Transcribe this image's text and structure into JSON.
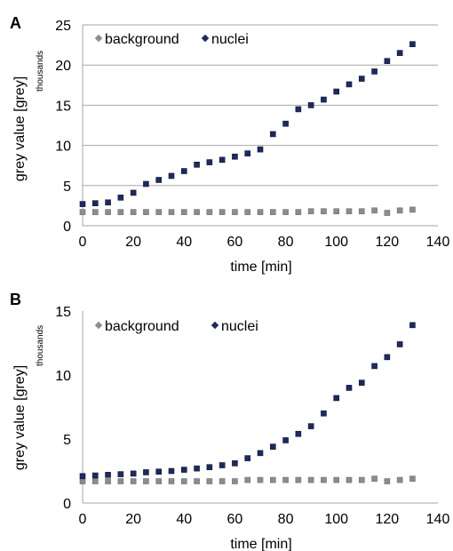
{
  "charts": [
    {
      "panel_label": "A",
      "units_label": "thousands",
      "legend": {
        "background": "background",
        "nuclei": "nuclei"
      },
      "grid": true,
      "legend_position": "top-left",
      "colors": {
        "background": "#8c8c8c",
        "nuclei": "#1f2a5c"
      }
    },
    {
      "panel_label": "B",
      "units_label": "thousands",
      "legend": {
        "background": "background",
        "nuclei": "nuclei"
      },
      "grid": false,
      "legend_position": "top-left",
      "colors": {
        "background": "#8c8c8c",
        "nuclei": "#1f2a5c"
      }
    }
  ],
  "chart_data": [
    {
      "type": "scatter",
      "xlabel": "time [min]",
      "ylabel": "grey value [grey]",
      "xlim": [
        0,
        140
      ],
      "ylim": [
        0,
        25
      ],
      "xticks": [
        0,
        20,
        40,
        60,
        80,
        100,
        120,
        140
      ],
      "yticks": [
        0,
        5,
        10,
        15,
        20,
        25
      ],
      "x": [
        0,
        5,
        10,
        15,
        20,
        25,
        30,
        35,
        40,
        45,
        50,
        55,
        60,
        65,
        70,
        75,
        80,
        85,
        90,
        95,
        100,
        105,
        110,
        115,
        120,
        125,
        130
      ],
      "series": [
        {
          "name": "background",
          "values": [
            1.7,
            1.7,
            1.7,
            1.7,
            1.7,
            1.7,
            1.7,
            1.7,
            1.7,
            1.7,
            1.7,
            1.7,
            1.7,
            1.7,
            1.7,
            1.7,
            1.7,
            1.7,
            1.8,
            1.8,
            1.8,
            1.8,
            1.8,
            1.9,
            1.6,
            1.9,
            2.0
          ]
        },
        {
          "name": "nuclei",
          "values": [
            2.7,
            2.8,
            2.9,
            3.5,
            4.1,
            5.2,
            5.7,
            6.2,
            6.8,
            7.6,
            7.9,
            8.2,
            8.6,
            9.0,
            9.5,
            11.4,
            12.7,
            14.5,
            15.0,
            15.7,
            16.7,
            17.6,
            18.3,
            19.2,
            20.5,
            21.5,
            22.6
          ]
        }
      ]
    },
    {
      "type": "scatter",
      "xlabel": "time [min]",
      "ylabel": "grey value [grey]",
      "xlim": [
        0,
        140
      ],
      "ylim": [
        0,
        15
      ],
      "xticks": [
        0,
        20,
        40,
        60,
        80,
        100,
        120,
        140
      ],
      "yticks": [
        0,
        5,
        10,
        15
      ],
      "x": [
        0,
        5,
        10,
        15,
        20,
        25,
        30,
        35,
        40,
        45,
        50,
        55,
        60,
        65,
        70,
        75,
        80,
        85,
        90,
        95,
        100,
        105,
        110,
        115,
        120,
        125,
        130
      ],
      "series": [
        {
          "name": "background",
          "values": [
            1.7,
            1.7,
            1.7,
            1.7,
            1.7,
            1.7,
            1.7,
            1.7,
            1.7,
            1.7,
            1.7,
            1.7,
            1.7,
            1.8,
            1.8,
            1.8,
            1.8,
            1.8,
            1.8,
            1.8,
            1.8,
            1.8,
            1.8,
            1.9,
            1.7,
            1.8,
            1.9
          ]
        },
        {
          "name": "nuclei",
          "values": [
            2.1,
            2.15,
            2.2,
            2.25,
            2.3,
            2.4,
            2.45,
            2.5,
            2.6,
            2.7,
            2.8,
            2.95,
            3.1,
            3.5,
            3.9,
            4.4,
            4.9,
            5.4,
            6.0,
            7.0,
            8.2,
            9.0,
            9.4,
            10.7,
            11.4,
            12.4,
            13.9
          ]
        }
      ]
    }
  ]
}
